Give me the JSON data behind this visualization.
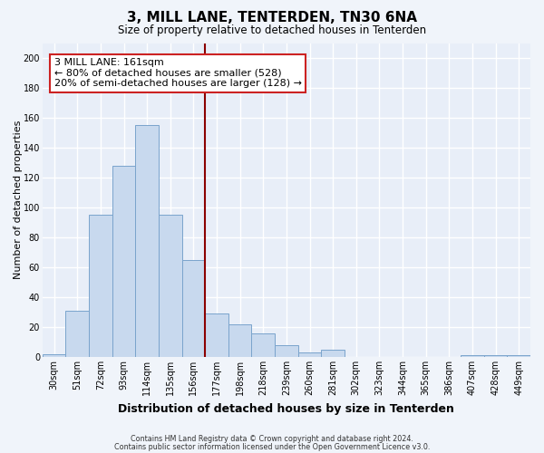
{
  "title": "3, MILL LANE, TENTERDEN, TN30 6NA",
  "subtitle": "Size of property relative to detached houses in Tenterden",
  "xlabel": "Distribution of detached houses by size in Tenterden",
  "ylabel": "Number of detached properties",
  "categories": [
    "30sqm",
    "51sqm",
    "72sqm",
    "93sqm",
    "114sqm",
    "135sqm",
    "156sqm",
    "177sqm",
    "198sqm",
    "218sqm",
    "239sqm",
    "260sqm",
    "281sqm",
    "302sqm",
    "323sqm",
    "344sqm",
    "365sqm",
    "386sqm",
    "407sqm",
    "428sqm",
    "449sqm"
  ],
  "values": [
    2,
    31,
    95,
    128,
    155,
    95,
    65,
    29,
    22,
    16,
    8,
    3,
    5,
    0,
    0,
    0,
    0,
    0,
    1,
    1,
    1
  ],
  "bar_color": "#c8d9ee",
  "bar_edge_color": "#7aa4cc",
  "vline_x_index": 6,
  "vline_color": "#8b0000",
  "annotation_title": "3 MILL LANE: 161sqm",
  "annotation_line1": "← 80% of detached houses are smaller (528)",
  "annotation_line2": "20% of semi-detached houses are larger (128) →",
  "annotation_box_edge_color": "#cc2222",
  "annotation_fill": "white",
  "ylim": [
    0,
    210
  ],
  "yticks": [
    0,
    20,
    40,
    60,
    80,
    100,
    120,
    140,
    160,
    180,
    200
  ],
  "footer1": "Contains HM Land Registry data © Crown copyright and database right 2024.",
  "footer2": "Contains public sector information licensed under the Open Government Licence v3.0.",
  "plot_bg_color": "#e8eef8",
  "fig_bg_color": "#f0f4fa",
  "grid_color": "#ffffff",
  "title_fontsize": 11,
  "subtitle_fontsize": 8.5,
  "ylabel_fontsize": 8,
  "xlabel_fontsize": 9,
  "tick_fontsize": 7,
  "annotation_fontsize": 8
}
